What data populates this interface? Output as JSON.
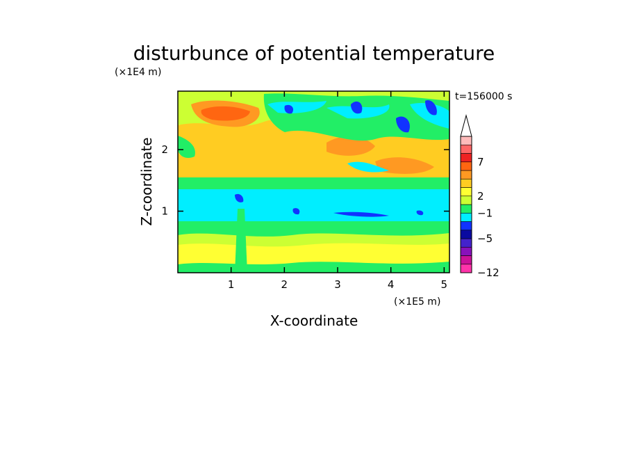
{
  "chart_data": {
    "type": "heatmap",
    "title": "disturbunce of potential temperature",
    "time_label": "t=156000 s",
    "xlabel": "X-coordinate",
    "ylabel": "Z-coordinate",
    "x_scale_label": "(×1E5 m)",
    "y_scale_label": "(×1E4 m)",
    "xlim": [
      0,
      5.1
    ],
    "ylim": [
      0,
      2.95
    ],
    "x_ticks": [
      1,
      2,
      3,
      4,
      5
    ],
    "x_tick_labels": [
      "1",
      "2",
      "3",
      "4",
      "5"
    ],
    "y_ticks": [
      1,
      2
    ],
    "y_tick_labels": [
      "1",
      "2"
    ],
    "colorbar": {
      "tick_labels": [
        "7",
        "2",
        "−1",
        "−5",
        "−12"
      ],
      "colors_low_to_high": [
        "#ff33aa",
        "#cc1199",
        "#8811bb",
        "#4422cc",
        "#0a0aa0",
        "#1133ff",
        "#00eeff",
        "#22ee66",
        "#ccff33",
        "#ffff33",
        "#ffcc22",
        "#ff9922",
        "#ff6611",
        "#ee2222",
        "#ff6666",
        "#ffbbbb"
      ],
      "extend_top": true
    },
    "regions_description_free": true,
    "field": {
      "bands": [
        {
          "z": [
            0.0,
            0.25
          ],
          "level": "yellow"
        },
        {
          "z": [
            0.25,
            0.55
          ],
          "level": "light-yellow"
        },
        {
          "z": [
            0.55,
            0.8
          ],
          "level": "green"
        },
        {
          "z": [
            0.8,
            1.35
          ],
          "level": "cyan"
        },
        {
          "z": [
            1.35,
            1.6
          ],
          "level": "green"
        },
        {
          "z": [
            1.6,
            2.95
          ],
          "level": "mixed-warm"
        }
      ]
    }
  }
}
